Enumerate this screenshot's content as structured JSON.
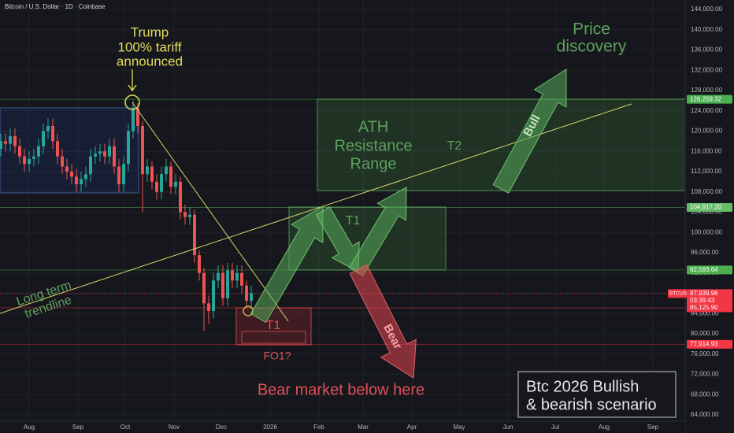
{
  "chart_data": {
    "type": "candlestick",
    "title": "Bitcoin / U.S. Dollar · 1D · Coinbase",
    "x": [
      -18,
      -15,
      -12,
      -9,
      -6,
      -3,
      0,
      3,
      6,
      9,
      12,
      15,
      18,
      21,
      24,
      27,
      30,
      33,
      36,
      39,
      42,
      45,
      48,
      51,
      54,
      57,
      60,
      63,
      66,
      69,
      72,
      75,
      78,
      81,
      84,
      87,
      90,
      93,
      96,
      99,
      102,
      105,
      108,
      111,
      114,
      117,
      120,
      123,
      126,
      129,
      132,
      135,
      138,
      141
    ],
    "open": [
      116500,
      118000,
      117500,
      119000,
      117000,
      115000,
      113500,
      114500,
      115000,
      117000,
      120000,
      121000,
      118000,
      115000,
      113000,
      112000,
      111000,
      109500,
      110500,
      111500,
      115000,
      115500,
      116000,
      115000,
      117000,
      113000,
      109500,
      113500,
      120000,
      124500,
      121000,
      111500,
      113000,
      110000,
      108000,
      111500,
      113000,
      109000,
      110000,
      104000,
      103000,
      103500,
      95500,
      92000,
      86000,
      84500,
      90500,
      92000,
      87000,
      92500,
      90500,
      92000,
      89500,
      86500
    ],
    "high": [
      119500,
      119500,
      120500,
      120500,
      118500,
      116500,
      116000,
      116500,
      118500,
      121500,
      122500,
      122500,
      119500,
      116500,
      114500,
      113500,
      112500,
      112000,
      113000,
      116500,
      117000,
      117500,
      117500,
      118500,
      118500,
      114500,
      115000,
      121500,
      126000,
      125500,
      122000,
      114500,
      114000,
      111500,
      113000,
      114500,
      114000,
      111500,
      111000,
      105500,
      105000,
      104500,
      96500,
      93000,
      87500,
      92000,
      93500,
      93500,
      94000,
      94000,
      93500,
      93500,
      90500,
      89500
    ],
    "low": [
      115000,
      116000,
      116000,
      115500,
      113500,
      112000,
      112000,
      113000,
      113500,
      115500,
      118500,
      116500,
      113500,
      111500,
      110500,
      109500,
      108000,
      108000,
      109000,
      110000,
      113500,
      114000,
      113500,
      113500,
      111500,
      108000,
      108000,
      112000,
      118500,
      119500,
      104000,
      110000,
      108500,
      106500,
      106500,
      110000,
      107500,
      107500,
      102500,
      101500,
      101500,
      94000,
      90500,
      80600,
      82000,
      83000,
      89000,
      85500,
      85500,
      89000,
      89000,
      88000,
      85000,
      85000
    ],
    "close": [
      118000,
      117500,
      119000,
      117000,
      115000,
      113500,
      114500,
      115000,
      117000,
      120000,
      121000,
      118000,
      115000,
      113000,
      112000,
      111000,
      109500,
      110500,
      111500,
      115000,
      115500,
      116000,
      115000,
      117000,
      113000,
      109500,
      113500,
      120000,
      124500,
      121000,
      111500,
      113000,
      110000,
      108000,
      111500,
      113000,
      109000,
      110000,
      104000,
      103000,
      103500,
      95500,
      92000,
      86000,
      84500,
      90500,
      92000,
      87000,
      92500,
      90500,
      92000,
      89500,
      86500,
      88000
    ],
    "up_color": "#26a69a",
    "down_color": "#ef5350",
    "xlim": [
      -18.5,
      416.5
    ],
    "xticks": [
      {
        "value": 0,
        "label": "Aug"
      },
      {
        "value": 31,
        "label": "Sep"
      },
      {
        "value": 61,
        "label": "Oct"
      },
      {
        "value": 92,
        "label": "Nov"
      },
      {
        "value": 122,
        "label": "Dec"
      },
      {
        "value": 153,
        "label": "2026"
      },
      {
        "value": 184,
        "label": "Feb"
      },
      {
        "value": 212,
        "label": "Mar"
      },
      {
        "value": 243,
        "label": "Apr"
      },
      {
        "value": 273,
        "label": "May"
      },
      {
        "value": 304,
        "label": "Jun"
      },
      {
        "value": 334,
        "label": "Jul"
      },
      {
        "value": 365,
        "label": "Aug"
      },
      {
        "value": 396,
        "label": "Sep"
      }
    ],
    "ylim": [
      62750,
      145860
    ],
    "yticks": [
      {
        "value": 64000,
        "label": "64,000.00"
      },
      {
        "value": 68000,
        "label": "68,000.00"
      },
      {
        "value": 72000,
        "label": "72,000.00"
      },
      {
        "value": 76000,
        "label": "76,000.00"
      },
      {
        "value": 80000,
        "label": "80,000.00"
      },
      {
        "value": 84000,
        "label": "84,000.00"
      },
      {
        "value": 88000,
        "label": "88,000.00"
      },
      {
        "value": 92000,
        "label": "92,000.00"
      },
      {
        "value": 96000,
        "label": "96,000.00"
      },
      {
        "value": 100000,
        "label": "100,000.00"
      },
      {
        "value": 104000,
        "label": "104,000.00"
      },
      {
        "value": 108000,
        "label": "108,000.00"
      },
      {
        "value": 112000,
        "label": "112,000.00"
      },
      {
        "value": 116000,
        "label": "116,000.00"
      },
      {
        "value": 120000,
        "label": "120,000.00"
      },
      {
        "value": 124000,
        "label": "124,000.00"
      },
      {
        "value": 128000,
        "label": "128,000.00"
      },
      {
        "value": 132000,
        "label": "132,000.00"
      },
      {
        "value": 136000,
        "label": "136,000.00"
      },
      {
        "value": 140000,
        "label": "140,000.00"
      },
      {
        "value": 144000,
        "label": "144,000.00"
      }
    ],
    "grid": true,
    "price_levels": [
      {
        "value": 126259.32,
        "label": "126,259.32",
        "color": "#4caf50"
      },
      {
        "value": 104917.2,
        "label": "104,917.20",
        "color": "#66bb6a"
      },
      {
        "value": 92593.64,
        "label": "92,593.64",
        "color": "#4caf50"
      },
      {
        "value": 85125.9,
        "label": "85,125.90",
        "color": "#f23645"
      },
      {
        "value": 77914.93,
        "label": "77,914.93",
        "color": "#f23645"
      }
    ],
    "last_price": {
      "symbol": "BTCUSD",
      "value": 87939.96,
      "label": "87,939.96",
      "countdown": "03:39:43",
      "color": "#f23645"
    }
  },
  "annotations": {
    "trump_note": [
      "Trump",
      "100% tariff",
      "announced"
    ],
    "price_discovery": [
      "Price",
      "discovery"
    ],
    "ath_range": [
      "ATH",
      "Resistance",
      "Range"
    ],
    "target_2": "T2",
    "target_1": "T1",
    "bull": "Bull",
    "bear": "Bear",
    "trendline": [
      "Long term",
      "trendline"
    ],
    "bear_target": "T1",
    "bear_fo": "FO1?",
    "bear_market": "Bear market below here",
    "scenario": [
      "Btc 2026 Bullish",
      "& bearish scenario"
    ]
  }
}
